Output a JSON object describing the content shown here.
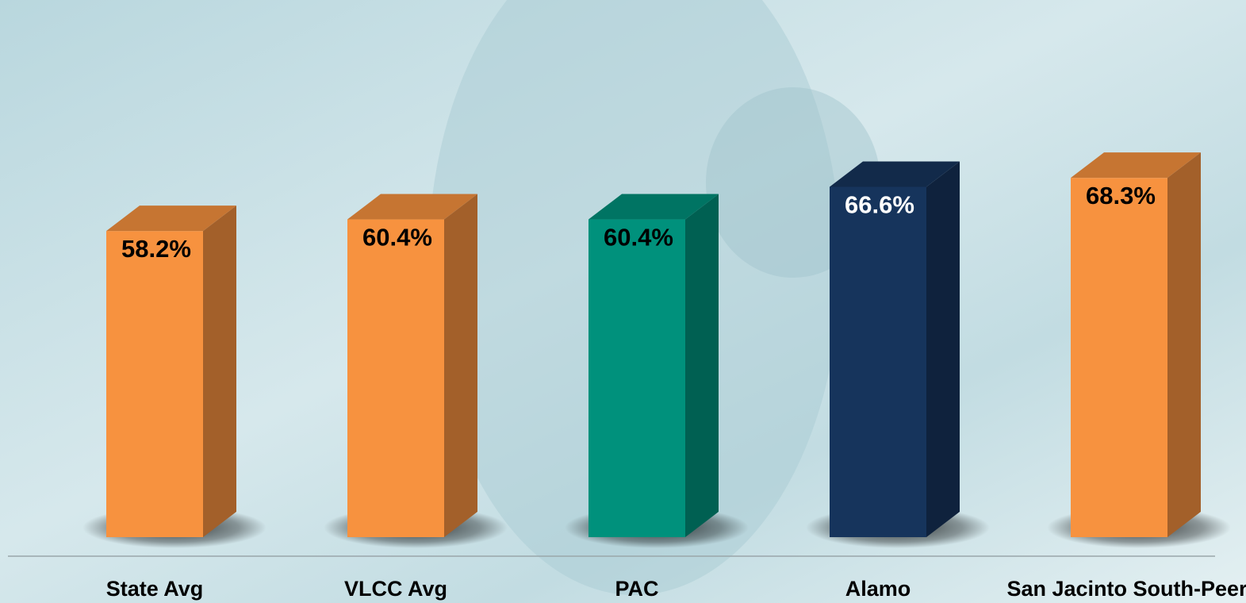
{
  "chart_data": {
    "type": "bar3d",
    "categories": [
      "State Avg",
      "VLCC Avg",
      "PAC",
      "Alamo",
      "San Jacinto South-Peer Best"
    ],
    "values": [
      58.2,
      60.4,
      60.4,
      66.6,
      68.3
    ],
    "value_labels": [
      "58.2%",
      "60.4%",
      "60.4%",
      "66.6%",
      "68.3%"
    ],
    "colors": [
      "#f7923f",
      "#f7923f",
      "#00917c",
      "#16345c",
      "#f7923f"
    ]
  }
}
